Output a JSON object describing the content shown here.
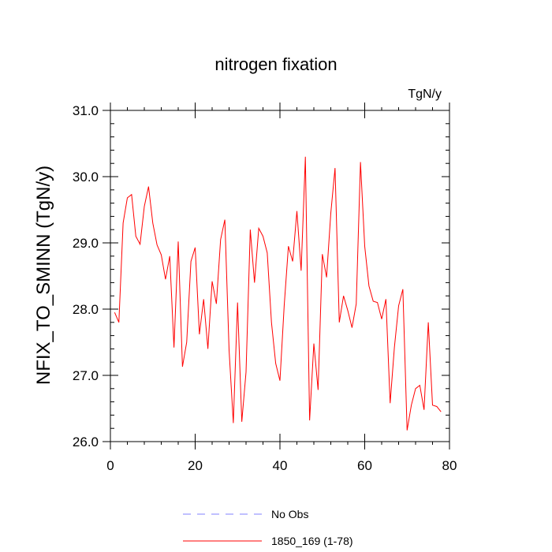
{
  "chart_data": {
    "type": "line",
    "title": "nitrogen fixation",
    "units_label": "TgN/y",
    "ylabel": "NFIX_TO_SMINN  (TgN/y)",
    "xlabel": "",
    "xlim": [
      0,
      80
    ],
    "ylim": [
      26.0,
      31.0
    ],
    "xticks": [
      0,
      20,
      40,
      60,
      80
    ],
    "xtick_labels": [
      "0",
      "20",
      "40",
      "60",
      "80"
    ],
    "yticks": [
      26.0,
      27.0,
      28.0,
      29.0,
      30.0,
      31.0
    ],
    "ytick_labels": [
      "26.0",
      "27.0",
      "28.0",
      "29.0",
      "30.0",
      "31.0"
    ],
    "grid": false,
    "legend_position": "bottom",
    "series": [
      {
        "name": "No Obs",
        "color": "#8080ff",
        "dash": "dashed",
        "x": [],
        "values": []
      },
      {
        "name": "1850_169 (1-78)",
        "color": "#ff0000",
        "dash": "solid",
        "x": [
          1,
          2,
          3,
          4,
          5,
          6,
          7,
          8,
          9,
          10,
          11,
          12,
          13,
          14,
          15,
          16,
          17,
          18,
          19,
          20,
          21,
          22,
          23,
          24,
          25,
          26,
          27,
          28,
          29,
          30,
          31,
          32,
          33,
          34,
          35,
          36,
          37,
          38,
          39,
          40,
          41,
          42,
          43,
          44,
          45,
          46,
          47,
          48,
          49,
          50,
          51,
          52,
          53,
          54,
          55,
          56,
          57,
          58,
          59,
          60,
          61,
          62,
          63,
          64,
          65,
          66,
          67,
          68,
          69,
          70,
          71,
          72,
          73,
          74,
          75,
          76,
          77,
          78
        ],
        "values": [
          27.95,
          27.8,
          29.3,
          29.68,
          29.73,
          29.1,
          28.98,
          29.55,
          29.85,
          29.3,
          28.97,
          28.82,
          28.45,
          28.8,
          27.42,
          29.02,
          27.13,
          27.5,
          28.72,
          28.93,
          27.62,
          28.15,
          27.4,
          28.42,
          28.08,
          29.05,
          29.35,
          27.38,
          26.28,
          28.1,
          26.3,
          27.05,
          29.2,
          28.4,
          29.22,
          29.1,
          28.85,
          27.8,
          27.18,
          26.92,
          28.05,
          28.95,
          28.72,
          29.48,
          28.58,
          30.3,
          26.32,
          27.48,
          26.78,
          28.83,
          28.48,
          29.45,
          30.13,
          27.8,
          28.2,
          27.98,
          27.72,
          28.08,
          30.22,
          28.95,
          28.35,
          28.12,
          28.1,
          27.85,
          28.15,
          26.58,
          27.42,
          28.05,
          28.3,
          26.17,
          26.55,
          26.8,
          26.85,
          26.48,
          27.8,
          26.55,
          26.53,
          26.45
        ]
      }
    ]
  }
}
